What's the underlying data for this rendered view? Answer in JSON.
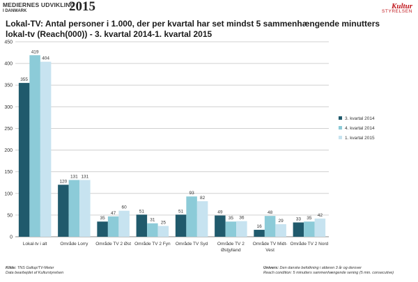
{
  "header": {
    "brand_line1": "MEDIERNES UDVIKLING",
    "brand_line2": "I DANMARK",
    "brand_year": "2015",
    "logo_mark": "Kultur",
    "logo_sub": "STYRELSEN",
    "logo_color": "#c0151b"
  },
  "chart_data": {
    "type": "bar",
    "title": "Lokal-TV: Antal personer i 1.000, der per kvartal har set mindst 5 sammenhængende minutters lokal-tv (Reach(000)) - 3. kvartal 2014-1. kvartal 2015",
    "categories": [
      [
        "Lokal-tv i alt"
      ],
      [
        "Område Lorry"
      ],
      [
        "Område TV 2 Øst"
      ],
      [
        "Område TV 2 Fyn"
      ],
      [
        "Område TV Syd"
      ],
      [
        "Område TV 2",
        "Østjylland"
      ],
      [
        "Område TV Midt-",
        "Vest"
      ],
      [
        "Område TV 2 Nord"
      ]
    ],
    "series": [
      {
        "name": "3. kvartal 2014",
        "color": "#205a6c",
        "values": [
          355,
          120,
          35,
          51,
          51,
          49,
          16,
          33
        ]
      },
      {
        "name": "4. kvartal 2014",
        "color": "#8ccbd8",
        "values": [
          419,
          131,
          47,
          31,
          93,
          35,
          48,
          35
        ]
      },
      {
        "name": "1. kvartal 2015",
        "color": "#c7e3f0",
        "values": [
          404,
          131,
          60,
          25,
          82,
          36,
          29,
          42
        ]
      }
    ],
    "ylim": [
      0,
      450
    ],
    "yticks": [
      0,
      50,
      100,
      150,
      200,
      250,
      300,
      350,
      400,
      450
    ],
    "grid": true,
    "legend_position": "right"
  },
  "footer": {
    "source_label": "Kilde:",
    "source_text": "TNS Gallup/TV-Meter",
    "source_line2": "Data bearbejdet af  Kulturstyrelsen",
    "universe_label": "Univers:",
    "universe_text": "Den danske befolkning i alderen 3 år og derover",
    "reach_text": "Reach condition: 5 minutters sammenhængende sening (5 min. consecutive)"
  }
}
